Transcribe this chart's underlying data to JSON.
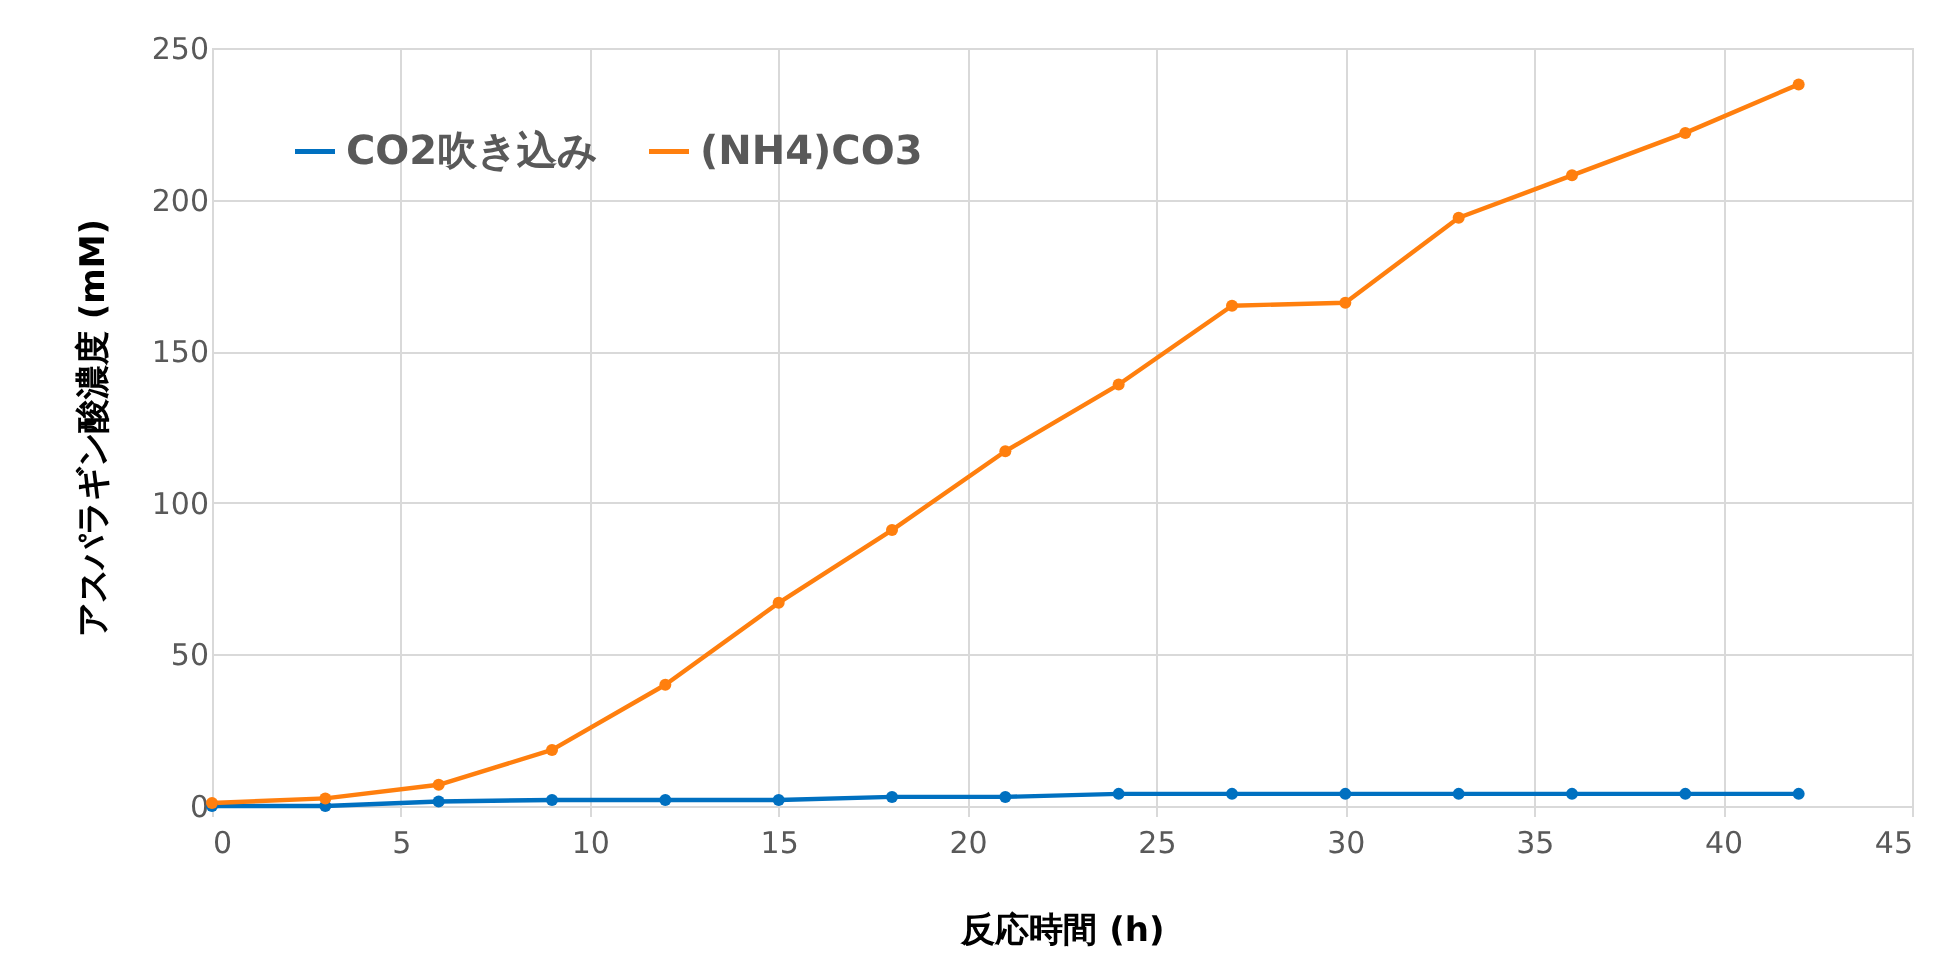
{
  "chart_data": {
    "type": "line",
    "xlabel": "反応時間 (h)",
    "ylabel": "アスパラギン酸濃度 (mM)",
    "x": [
      0,
      3,
      6,
      9,
      12,
      15,
      18,
      21,
      24,
      27,
      30,
      33,
      36,
      39,
      42
    ],
    "series": [
      {
        "name": "CO2吹き込み",
        "color": "#0070c0",
        "values": [
          0,
          0,
          1.5,
          2,
          2,
          2,
          3,
          3,
          4,
          4,
          4,
          4,
          4,
          4,
          4
        ]
      },
      {
        "name": "(NH4)CO3",
        "color": "#ff7f0e",
        "values": [
          1,
          2.5,
          7,
          18.5,
          40,
          67,
          91,
          117,
          139,
          165,
          166,
          194,
          208,
          222,
          238
        ]
      }
    ],
    "xlim": [
      0,
      45
    ],
    "xticks": [
      0,
      5,
      10,
      15,
      20,
      25,
      30,
      35,
      40,
      45
    ],
    "ylim": [
      0,
      250
    ],
    "yticks": [
      0,
      50,
      100,
      150,
      200,
      250
    ],
    "grid": true,
    "legend": "top left",
    "marker": "circle",
    "line_style": "solid"
  }
}
